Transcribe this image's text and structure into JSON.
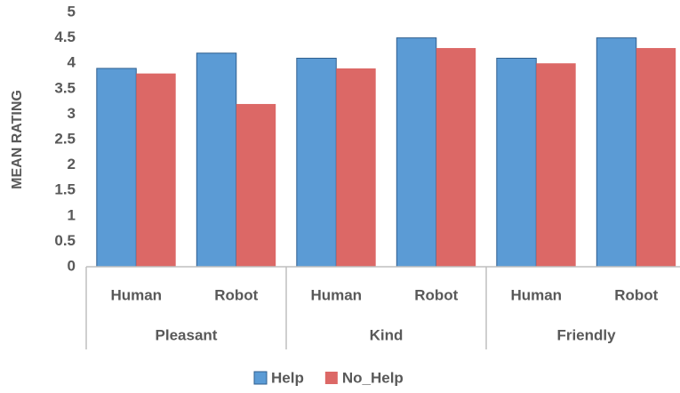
{
  "chart_data": {
    "type": "bar",
    "y_label": "MEAN RATING",
    "categories": [
      "Human",
      "Robot",
      "Human",
      "Robot",
      "Human",
      "Robot"
    ],
    "groups": [
      "Pleasant",
      "Kind",
      "Friendly"
    ],
    "series": [
      {
        "name": "Help",
        "color": "#5b9bd5",
        "edgecolor": "#2f5f8f",
        "values": [
          3.9,
          4.2,
          4.1,
          4.5,
          4.1,
          4.5
        ]
      },
      {
        "name": "No_Help",
        "color": "#dc6866",
        "values": [
          3.8,
          3.2,
          3.9,
          4.3,
          4.0,
          4.3
        ]
      }
    ],
    "ylim": [
      0,
      5
    ],
    "yticks": [
      0,
      0.5,
      1,
      1.5,
      2,
      2.5,
      3,
      3.5,
      4,
      4.5,
      5
    ],
    "grid": false,
    "legend": "bottom"
  }
}
